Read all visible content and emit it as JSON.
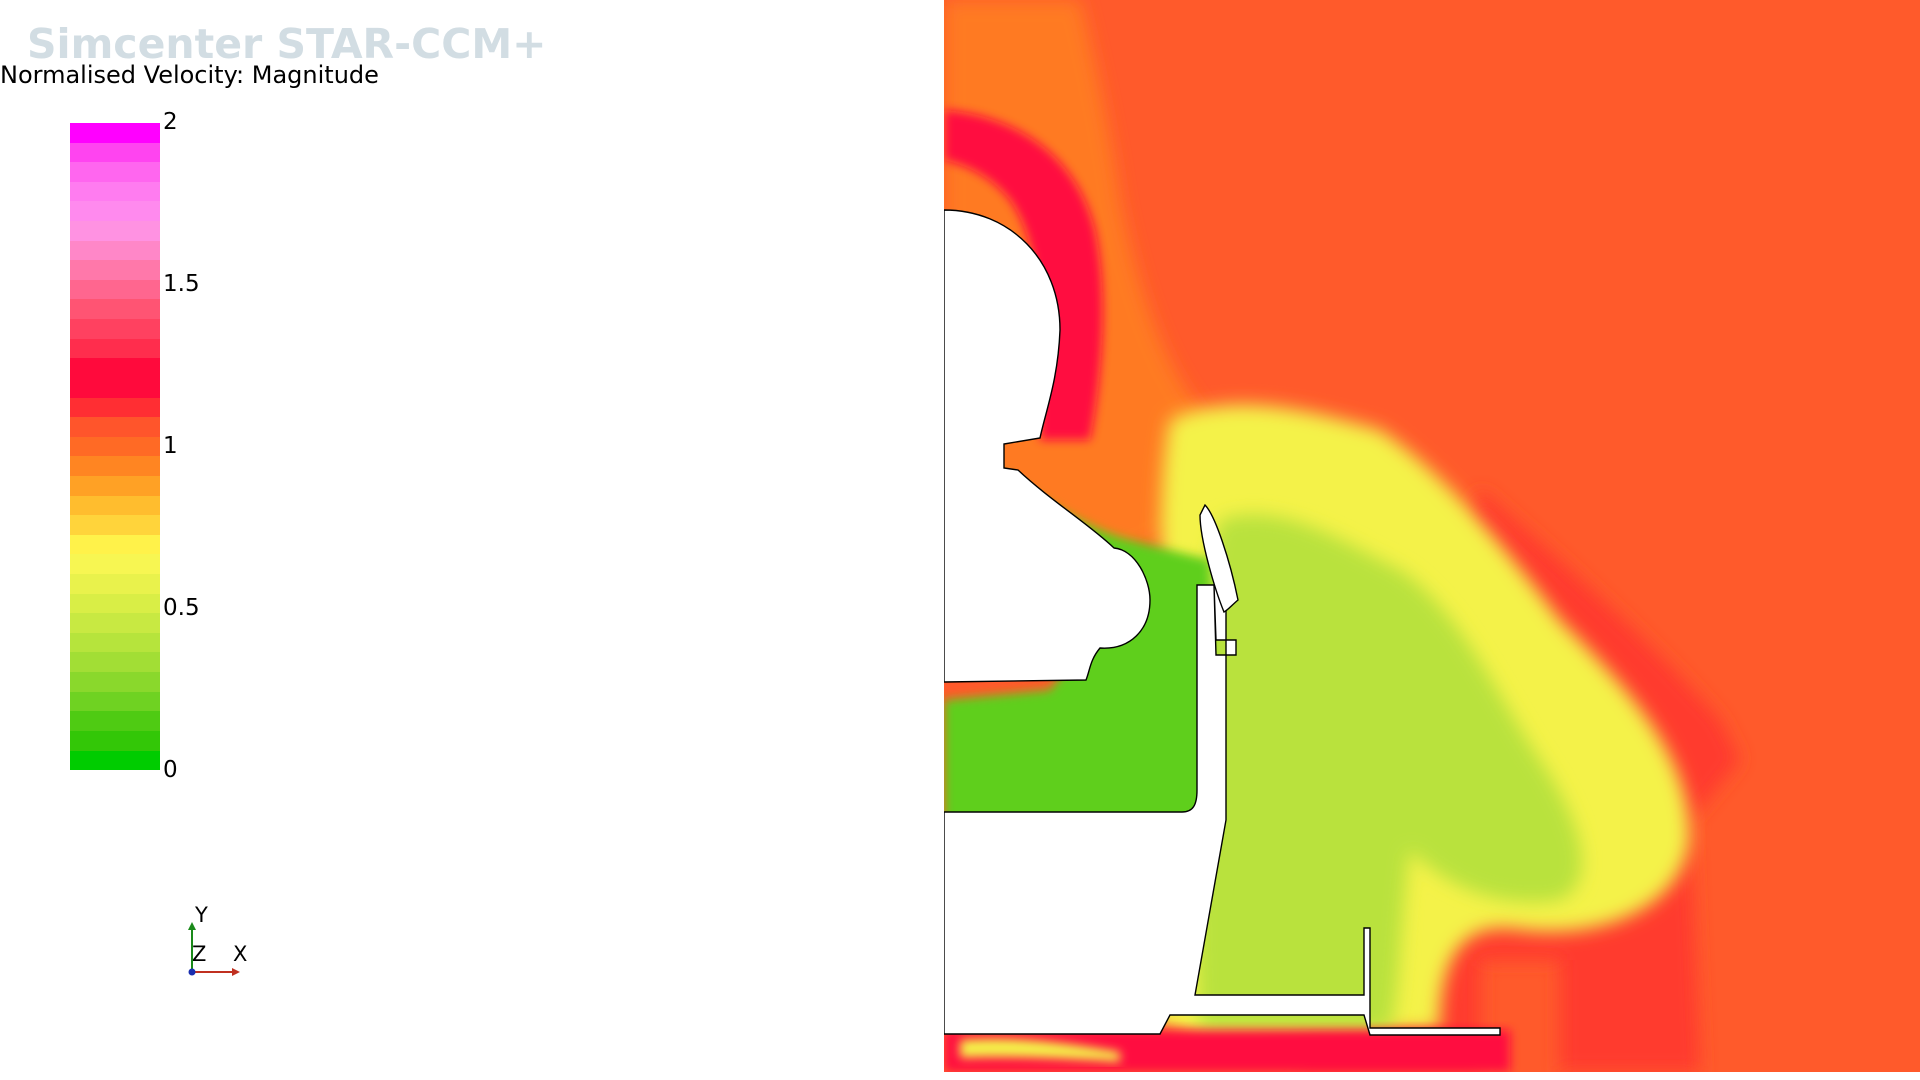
{
  "app": {
    "watermark": "Simcenter STAR-CCM+"
  },
  "legend": {
    "title": "Normalised Velocity: Magnitude",
    "min": 0,
    "max": 2,
    "ticks": [
      "2",
      "1.5",
      "1",
      "0.5",
      "0"
    ],
    "tick_values": [
      2,
      1.5,
      1,
      0.5,
      0
    ],
    "band_colors": [
      "#ff00ff",
      "#ff44f0",
      "#ff66ef",
      "#ff7cf0",
      "#ff8aee",
      "#ff92e2",
      "#ff87c8",
      "#ff78aa",
      "#ff668f",
      "#ff5473",
      "#ff4160",
      "#ff2d4d",
      "#ff0a3c",
      "#ff0a3c",
      "#ff2e33",
      "#ff552b",
      "#ff6a25",
      "#ff8522",
      "#ffa125",
      "#ffbd2e",
      "#ffd43b",
      "#fff24a",
      "#f7f652",
      "#e9f24c",
      "#d9ee46",
      "#c8e942",
      "#b6e43c",
      "#a2de35",
      "#8ad82c",
      "#6fd222",
      "#4fcb13",
      "#33c707",
      "#00cc00"
    ]
  },
  "triad": {
    "y_label": "Y",
    "z_label": "Z",
    "x_label": "X"
  },
  "colors": {
    "freestream": "#ff5a2b",
    "outer_orange": "#ff7a22",
    "red_band": "#ff1040",
    "yellow": "#f4f24a",
    "light_green": "#b9e23c",
    "green": "#5fcf1c",
    "dark_green": "#33c707",
    "solid": "#ffffff",
    "outline": "#000000"
  }
}
